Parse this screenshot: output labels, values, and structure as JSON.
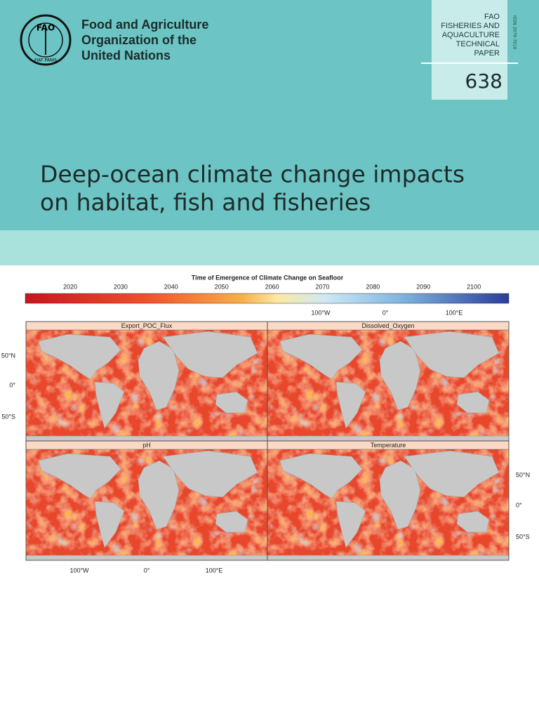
{
  "header": {
    "organization": [
      "Food and Agriculture",
      "Organization of the",
      "United Nations"
    ],
    "logo": {
      "letters": "FAO",
      "motto": "FIAT PANIS"
    },
    "series": [
      "FAO",
      "FISHERIES AND",
      "AQUACULTURE",
      "TECHNICAL",
      "PAPER"
    ],
    "number": "638",
    "issn": "ISSN 2070-7010",
    "title": [
      "Deep-ocean climate change impacts",
      "on habitat, fish and fisheries"
    ]
  },
  "figure": {
    "title": "Time of Emergence of Climate Change on Seafloor",
    "colorbar_ticks": [
      2020,
      2030,
      2040,
      2050,
      2060,
      2070,
      2080,
      2090,
      2100
    ],
    "panels": [
      "Export_POC_Flux",
      "Dissolved_Oxygen",
      "pH",
      "Temperature"
    ],
    "top_axis_labels": [
      "100°W",
      "0°",
      "100°E"
    ],
    "bottom_axis_labels": [
      "100°W",
      "0°",
      "100°E"
    ],
    "left_axis_labels": [
      "50°N",
      "0°",
      "50°S"
    ],
    "right_axis_labels": [
      "50°N",
      "0°",
      "50°S"
    ]
  }
}
